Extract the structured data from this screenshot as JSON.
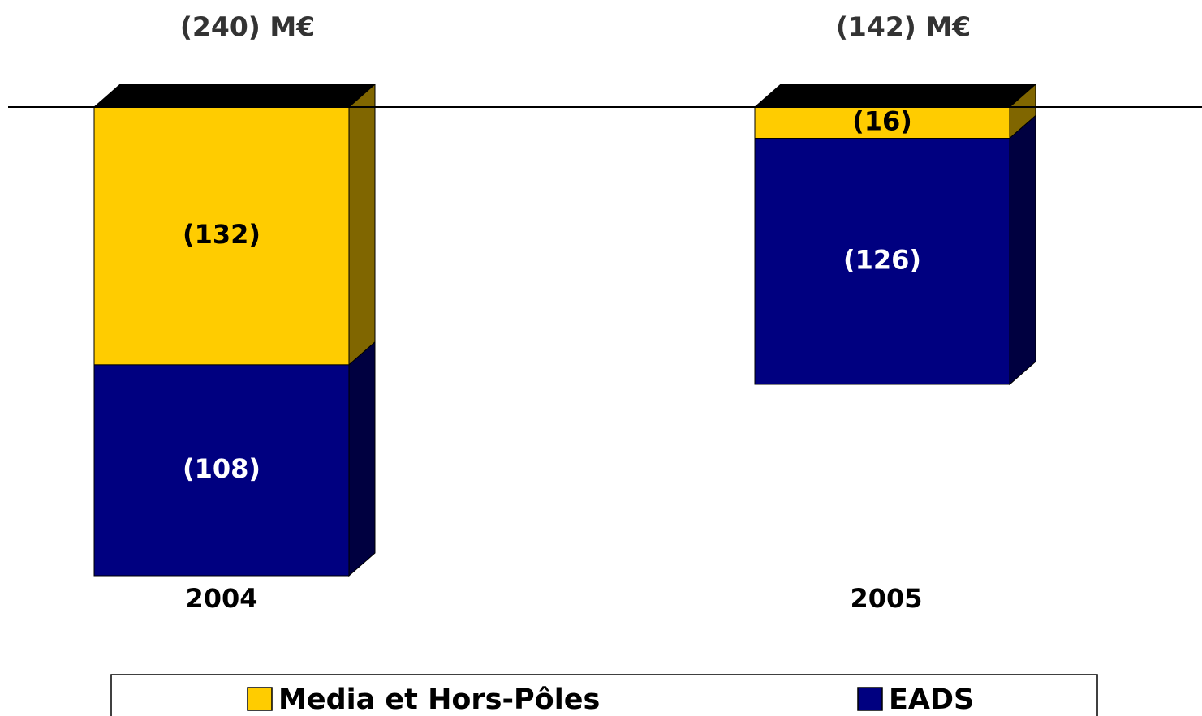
{
  "chart_data": {
    "type": "stacked_bar_3d",
    "annotations": [
      "(240) M€",
      "(142) M€"
    ],
    "categories": [
      "2004",
      "2005"
    ],
    "series": [
      {
        "name": "Media et Hors-Pôles",
        "color": "#ffcc00",
        "values": [
          -132,
          -16
        ],
        "value_labels": [
          "(132)",
          "(16)"
        ]
      },
      {
        "name": "EADS",
        "color": "#000080",
        "values": [
          -108,
          -126
        ],
        "value_labels": [
          "(108)",
          "(126)"
        ]
      }
    ],
    "ylim": [
      -240,
      0
    ],
    "legend": "bottom"
  }
}
